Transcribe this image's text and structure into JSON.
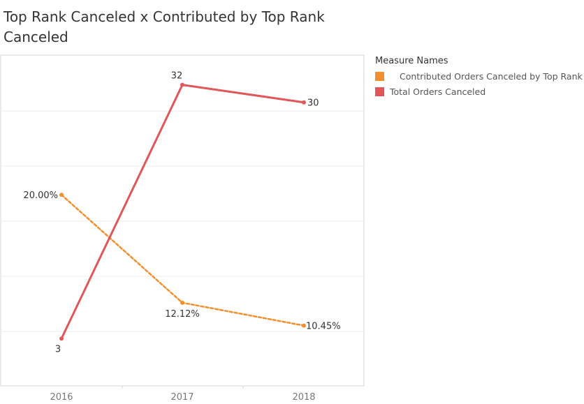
{
  "chart_data": {
    "type": "line",
    "title": "Top Rank Canceled x Contributed by Top Rank Canceled",
    "categories": [
      "2016",
      "2017",
      "2018"
    ],
    "legend_title": "Measure Names",
    "legend_position": "right",
    "series": [
      {
        "name": "Contributed Orders Canceled by Top Rank",
        "color": "#f28e2b",
        "line_style": "dashed",
        "values": [
          20.0,
          12.12,
          10.45
        ],
        "labels": [
          "20.00%",
          "12.12%",
          "10.45%"
        ]
      },
      {
        "name": "Total Orders Canceled",
        "color": "#e15759",
        "line_style": "solid",
        "values": [
          3,
          32,
          30
        ],
        "labels": [
          "3",
          "32",
          "30"
        ]
      }
    ],
    "grid": true,
    "axis": "dual-axis, no value axis labels shown"
  }
}
